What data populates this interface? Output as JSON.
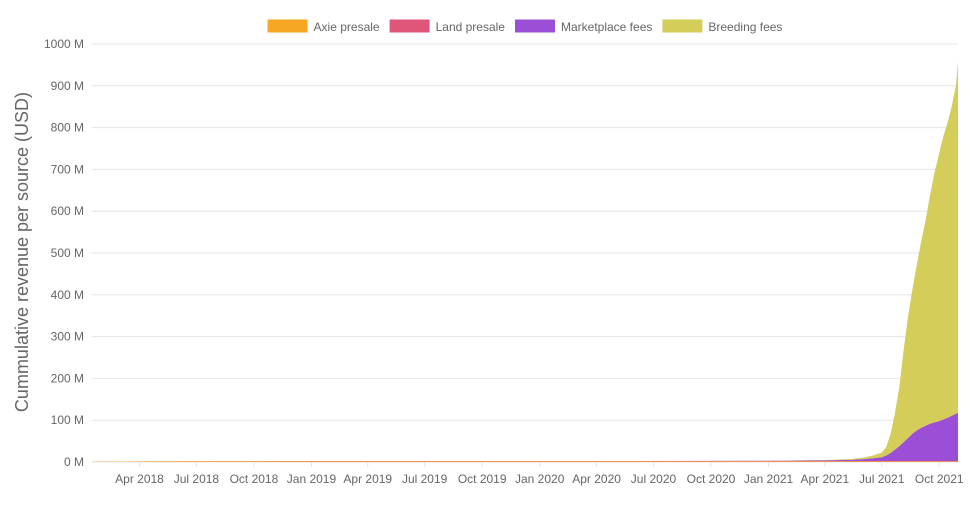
{
  "chart_data": {
    "type": "area",
    "stacked": true,
    "ylabel": "Cummulative revenue per source (USD)",
    "ylim": [
      0,
      1000000000
    ],
    "yticks": [
      0,
      100000000,
      200000000,
      300000000,
      400000000,
      500000000,
      600000000,
      700000000,
      800000000,
      900000000,
      1000000000
    ],
    "ytick_labels": [
      "0 M",
      "100 M",
      "200 M",
      "300 M",
      "400 M",
      "500 M",
      "600 M",
      "700 M",
      "800 M",
      "900 M",
      "1000 M"
    ],
    "xlim": [
      "2018-01-15",
      "2021-10-31"
    ],
    "xticks": [
      "2018-04-01",
      "2018-07-01",
      "2018-10-01",
      "2019-01-01",
      "2019-04-01",
      "2019-07-01",
      "2019-10-01",
      "2020-01-01",
      "2020-04-01",
      "2020-07-01",
      "2020-10-01",
      "2021-01-01",
      "2021-04-01",
      "2021-07-01",
      "2021-10-01"
    ],
    "xtick_labels": [
      "Apr 2018",
      "Jul 2018",
      "Oct 2018",
      "Jan 2019",
      "Apr 2019",
      "Jul 2019",
      "Oct 2019",
      "Jan 2020",
      "Apr 2020",
      "Jul 2020",
      "Oct 2020",
      "Jan 2021",
      "Apr 2021",
      "Jul 2021",
      "Oct 2021"
    ],
    "grid": true,
    "legend_position": "top-center",
    "x": [
      "2018-01-15",
      "2018-06-01",
      "2019-01-01",
      "2019-06-01",
      "2020-01-01",
      "2020-06-01",
      "2021-01-01",
      "2021-03-01",
      "2021-04-15",
      "2021-05-15",
      "2021-06-01",
      "2021-06-15",
      "2021-07-01",
      "2021-07-08",
      "2021-07-15",
      "2021-07-22",
      "2021-07-29",
      "2021-08-05",
      "2021-08-12",
      "2021-08-19",
      "2021-08-26",
      "2021-09-02",
      "2021-09-09",
      "2021-09-16",
      "2021-09-23",
      "2021-09-30",
      "2021-10-07",
      "2021-10-14",
      "2021-10-21",
      "2021-10-28",
      "2021-10-31"
    ],
    "series": [
      {
        "name": "Axie presale",
        "color": "#f5a623",
        "values": [
          500000,
          1500000,
          1500000,
          1500000,
          1500000,
          1500000,
          1500000,
          1500000,
          1500000,
          1500000,
          1500000,
          1500000,
          1500000,
          1500000,
          1500000,
          1500000,
          1500000,
          1500000,
          1500000,
          1500000,
          1500000,
          1500000,
          1500000,
          1500000,
          1500000,
          1500000,
          1500000,
          1500000,
          1500000,
          1500000,
          1500000
        ]
      },
      {
        "name": "Land presale",
        "color": "#e0567a",
        "values": [
          0,
          500000,
          1000000,
          1000000,
          1000000,
          1000000,
          1000000,
          1000000,
          1000000,
          1000000,
          1000000,
          1000000,
          1000000,
          1000000,
          1000000,
          1000000,
          1000000,
          1000000,
          1000000,
          1000000,
          1000000,
          1000000,
          1000000,
          1000000,
          1000000,
          1000000,
          1000000,
          1000000,
          1000000,
          1000000,
          1000000
        ]
      },
      {
        "name": "Marketplace fees",
        "color": "#9b4fd6",
        "values": [
          0,
          0,
          0,
          0,
          0,
          0,
          500000,
          1000000,
          2000000,
          3000000,
          4500000,
          6000000,
          9000000,
          13000000,
          19000000,
          27000000,
          35000000,
          45000000,
          55000000,
          65000000,
          73000000,
          79000000,
          84000000,
          89000000,
          92000000,
          95000000,
          99000000,
          103000000,
          108000000,
          113000000,
          116000000
        ]
      },
      {
        "name": "Breeding fees",
        "color": "#d4cd5a",
        "values": [
          0,
          0,
          0,
          0,
          0,
          0,
          0,
          500000,
          1000000,
          2000000,
          3500000,
          6000000,
          11000000,
          20000000,
          45000000,
          85000000,
          140000000,
          220000000,
          290000000,
          345000000,
          395000000,
          445000000,
          490000000,
          545000000,
          595000000,
          635000000,
          675000000,
          705000000,
          740000000,
          788000000,
          840000000
        ]
      }
    ]
  }
}
